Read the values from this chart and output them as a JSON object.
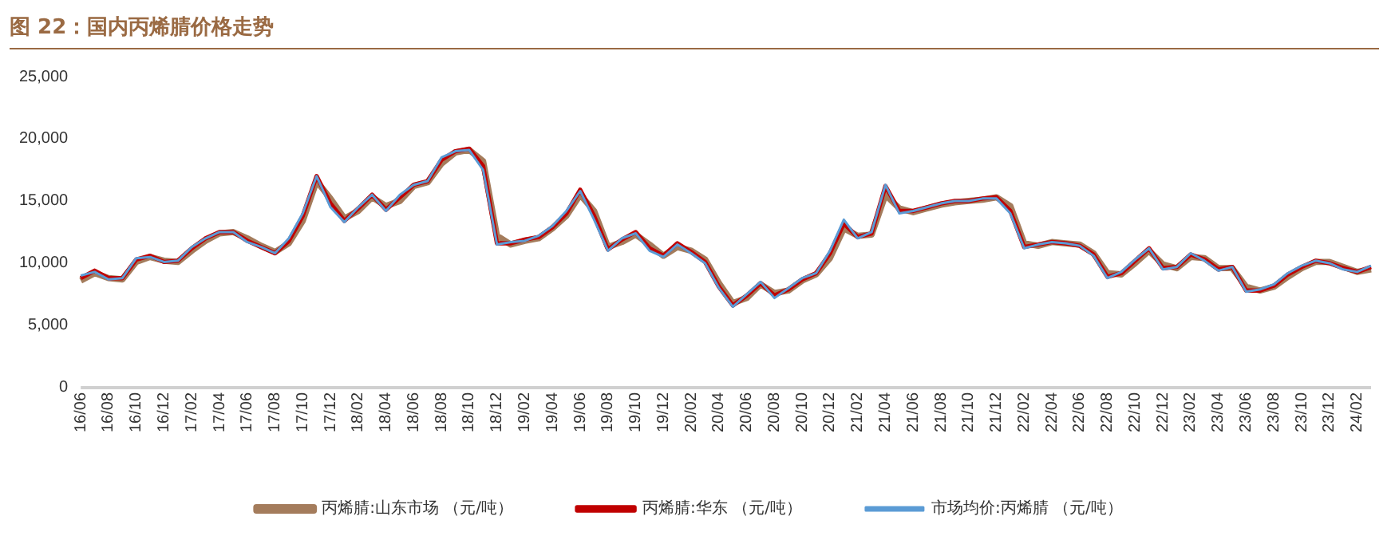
{
  "chart_data": {
    "type": "line",
    "title": "图 22：国内丙烯腈价格走势",
    "categories": [
      "16/06",
      null,
      "16/08",
      null,
      "16/10",
      null,
      "16/12",
      null,
      "17/02",
      null,
      "17/04",
      null,
      "17/06",
      null,
      "17/08",
      null,
      "17/10",
      null,
      "17/12",
      null,
      "18/02",
      null,
      "18/04",
      null,
      "18/06",
      null,
      "18/08",
      null,
      "18/10",
      null,
      "18/12",
      null,
      "19/02",
      null,
      "19/04",
      null,
      "19/06",
      null,
      "19/08",
      null,
      "19/10",
      null,
      "19/12",
      null,
      "20/02",
      null,
      "20/04",
      null,
      "20/06",
      null,
      "20/08",
      null,
      "20/10",
      null,
      "20/12",
      null,
      "21/02",
      null,
      "21/04",
      null,
      "21/06",
      null,
      "21/08",
      null,
      "21/10",
      null,
      "21/12",
      null,
      "22/02",
      null,
      "22/04",
      null,
      "22/06",
      null,
      "22/08",
      null,
      "22/10",
      null,
      "22/12",
      null,
      "23/02",
      null,
      "23/04",
      null,
      "23/06",
      null,
      "23/08",
      null,
      "23/10",
      null,
      "23/12",
      null,
      "24/02",
      null
    ],
    "series": [
      {
        "name": "丙烯腈:山东市场 （元/吨）",
        "color": "#a47c5c",
        "values": [
          8600,
          9200,
          8800,
          8700,
          10100,
          10500,
          10200,
          10100,
          11000,
          11800,
          12400,
          12500,
          12000,
          11400,
          10900,
          11600,
          13400,
          16600,
          15200,
          13600,
          14200,
          15300,
          14600,
          15000,
          16200,
          16500,
          18000,
          18900,
          19100,
          18200,
          12200,
          11500,
          11800,
          12000,
          12800,
          13800,
          15500,
          14200,
          11300,
          11700,
          12300,
          11500,
          10600,
          11300,
          11000,
          10300,
          8400,
          6800,
          7200,
          8300,
          7600,
          7800,
          8600,
          9100,
          10400,
          12800,
          12200,
          12300,
          15500,
          14400,
          14100,
          14400,
          14700,
          14900,
          15000,
          15100,
          15300,
          14600,
          11600,
          11400,
          11700,
          11600,
          11500,
          10800,
          9200,
          9100,
          10000,
          11000,
          9900,
          9600,
          10500,
          10400,
          9600,
          9600,
          8100,
          7800,
          8100,
          8900,
          9600,
          10100,
          10100,
          9700,
          9300,
          9500
        ]
      },
      {
        "name": "丙烯腈:华东 （元/吨）",
        "color": "#c00000",
        "values": [
          8800,
          9400,
          8800,
          8800,
          10300,
          10600,
          10100,
          10200,
          11200,
          12000,
          12500,
          12500,
          11800,
          11300,
          10800,
          11800,
          13800,
          17000,
          14800,
          13400,
          14400,
          15500,
          14300,
          15300,
          16300,
          16600,
          18300,
          19000,
          19200,
          17800,
          11600,
          11600,
          11900,
          12100,
          12900,
          14000,
          15900,
          13800,
          11100,
          11900,
          12500,
          11200,
          10600,
          11600,
          10900,
          10100,
          8100,
          6600,
          7400,
          8400,
          7400,
          7900,
          8700,
          9200,
          10800,
          13200,
          12100,
          12400,
          16200,
          14200,
          14200,
          14500,
          14800,
          15000,
          15000,
          15200,
          15300,
          14200,
          11300,
          11500,
          11700,
          11600,
          11400,
          10700,
          8900,
          9200,
          10200,
          11200,
          9600,
          9700,
          10700,
          10300,
          9500,
          9700,
          7800,
          7800,
          8200,
          9100,
          9700,
          10200,
          10000,
          9600,
          9300,
          9700
        ]
      },
      {
        "name": "市场均价:丙烯腈 （元/吨）",
        "color": "#5b9bd5",
        "values": [
          9000,
          9300,
          8700,
          8800,
          10400,
          10500,
          10100,
          10200,
          11300,
          12000,
          12500,
          12500,
          11700,
          11300,
          10800,
          12000,
          14000,
          17000,
          14500,
          13300,
          14500,
          15500,
          14200,
          15500,
          16300,
          16600,
          18500,
          19000,
          19100,
          17500,
          11500,
          11700,
          11800,
          12200,
          13000,
          14200,
          15800,
          13500,
          11000,
          12000,
          12400,
          11000,
          10500,
          11500,
          10800,
          10000,
          8000,
          6500,
          7500,
          8500,
          7200,
          8000,
          8800,
          9200,
          11000,
          13500,
          12000,
          12500,
          16300,
          14000,
          14200,
          14500,
          14800,
          15000,
          15000,
          15200,
          15200,
          14000,
          11200,
          11500,
          11700,
          11600,
          11400,
          10600,
          8800,
          9300,
          10300,
          11200,
          9500,
          9700,
          10800,
          10200,
          9400,
          9700,
          7700,
          7900,
          8300,
          9200,
          9800,
          10200,
          10000,
          9500,
          9300,
          9800
        ]
      }
    ],
    "ylim": [
      0,
      25000
    ],
    "yticks": [
      0,
      {
        "value": 5000,
        "label": "5,000"
      },
      {
        "value": 10000,
        "label": "10,000"
      },
      {
        "value": 15000,
        "label": "15,000"
      },
      {
        "value": 20000,
        "label": "20,000"
      },
      {
        "value": 25000,
        "label": "25,000"
      }
    ],
    "grid": false,
    "legend": "bottom",
    "marker": "none",
    "line_style": "solid"
  }
}
